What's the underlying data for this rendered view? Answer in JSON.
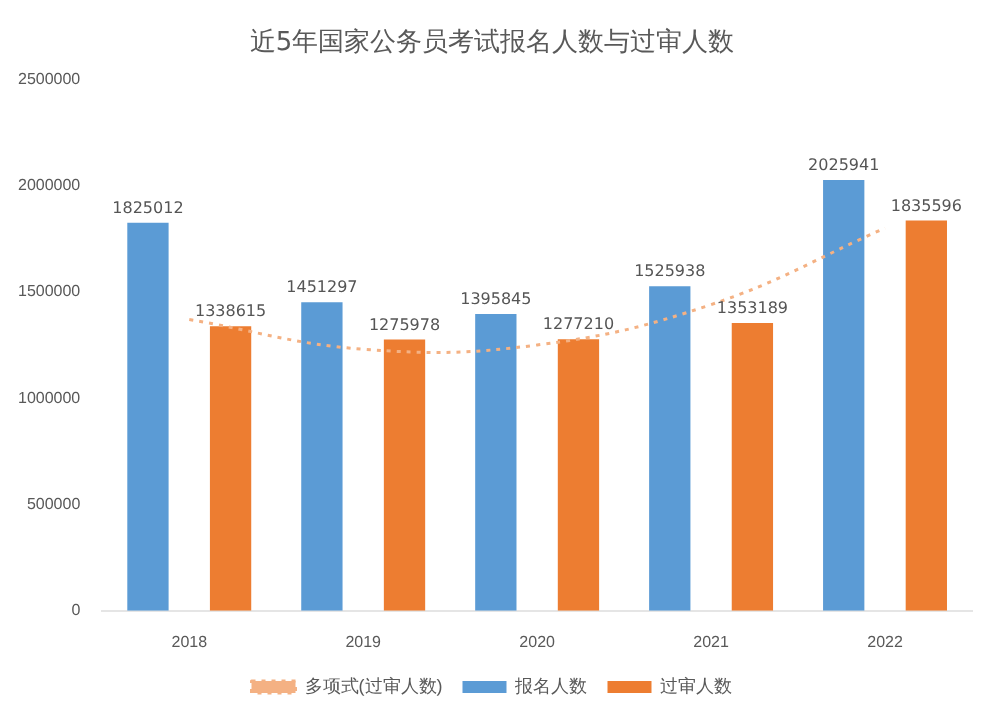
{
  "chart_data": {
    "type": "bar",
    "title": "近5年国家公务员考试报名人数与过审人数",
    "categories": [
      "2018",
      "2019",
      "2020",
      "2021",
      "2022"
    ],
    "series": [
      {
        "name": "报名人数",
        "color": "#5b9bd5",
        "values": [
          1825012,
          1451297,
          1395845,
          1525938,
          2025941
        ],
        "value_labels": [
          "1825012",
          "1451297",
          "1395845",
          "1525938",
          "2025941"
        ]
      },
      {
        "name": "过审人数",
        "color": "#ed7d31",
        "values": [
          1338615,
          1275978,
          1277210,
          1353189,
          1835596
        ],
        "value_labels": [
          "1338615",
          "1275978",
          "1277210",
          "1353189",
          "1835596"
        ]
      },
      {
        "name": "多项式(过审人数)",
        "type": "line",
        "color": "#f4b183",
        "line_style": "dotted",
        "marker": "none",
        "values": [
          1370000,
          1230000,
          1250000,
          1440000,
          1800000
        ]
      }
    ],
    "ylim": [
      0,
      2500000
    ],
    "yticks": [
      0,
      500000,
      1000000,
      1500000,
      2000000,
      2500000
    ],
    "grid": false,
    "legend": "bottom"
  }
}
